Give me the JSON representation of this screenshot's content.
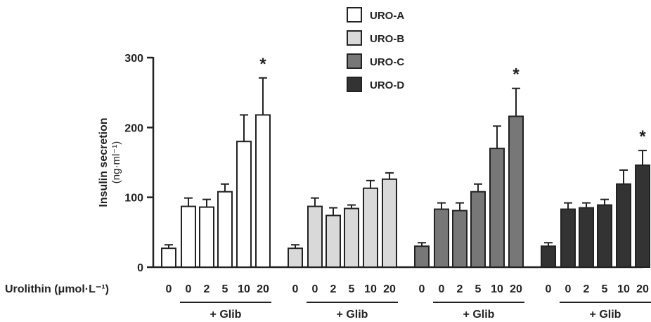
{
  "chart_data": {
    "type": "bar",
    "ylabel": "Insulin secretion",
    "ylabel_unit": "(ng·ml⁻¹)",
    "xlabel": "Urolithin (μmol·L⁻¹)",
    "ylim": [
      0,
      300
    ],
    "yticks": [
      "0",
      "100",
      "200",
      "300"
    ],
    "categories": [
      "0",
      "0",
      "2",
      "5",
      "10",
      "20"
    ],
    "glib_label": "+ Glib",
    "legend_position": "top-center",
    "series": [
      {
        "name": "URO-A",
        "color": "#ffffff",
        "values": [
          27,
          87,
          86,
          108,
          180,
          218
        ],
        "errors": [
          5,
          12,
          11,
          11,
          38,
          53
        ],
        "significant": [
          false,
          false,
          false,
          false,
          false,
          true
        ]
      },
      {
        "name": "URO-B",
        "color": "#d9d9d9",
        "values": [
          27,
          87,
          74,
          84,
          113,
          126
        ],
        "errors": [
          5,
          12,
          11,
          5,
          11,
          9
        ],
        "significant": [
          false,
          false,
          false,
          false,
          false,
          false
        ]
      },
      {
        "name": "URO-C",
        "color": "#777777",
        "values": [
          30,
          83,
          81,
          108,
          170,
          216
        ],
        "errors": [
          5,
          9,
          11,
          11,
          32,
          40
        ],
        "significant": [
          false,
          false,
          false,
          false,
          false,
          true
        ]
      },
      {
        "name": "URO-D",
        "color": "#333333",
        "values": [
          30,
          83,
          85,
          89,
          119,
          146
        ],
        "errors": [
          5,
          9,
          7,
          8,
          20,
          21
        ],
        "significant": [
          false,
          false,
          false,
          false,
          false,
          true
        ]
      }
    ],
    "significance_marker": "*"
  }
}
